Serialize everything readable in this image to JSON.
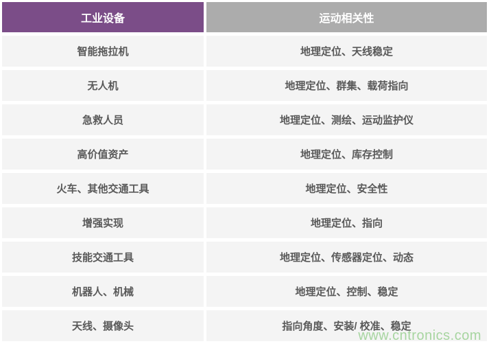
{
  "table": {
    "headers": [
      "工业设备",
      "运动相关性"
    ],
    "rows": [
      {
        "device": "智能拖拉机",
        "motion": "地理定位、天线稳定"
      },
      {
        "device": "无人机",
        "motion": "地理定位、群集、载荷指向"
      },
      {
        "device": "急救人员",
        "motion": "地理定位、测绘、运动监护仪"
      },
      {
        "device": "高价值资产",
        "motion": "地理定位、库存控制"
      },
      {
        "device": "火车、其他交通工具",
        "motion": "地理定位、安全性"
      },
      {
        "device": "增强实现",
        "motion": "地理定位、指向"
      },
      {
        "device": "技能交通工具",
        "motion": "地理定位、传感器定位、动态"
      },
      {
        "device": "机器人、机械",
        "motion": "地理定位、控制、稳定"
      },
      {
        "device": "天线、摄像头",
        "motion": "指向角度、安装/ 校准、稳定"
      }
    ]
  },
  "watermark": {
    "text": "www.cntronics.com",
    "color": "#A7D5A0"
  },
  "colors": {
    "header_equipment_bg": "#7B4D88",
    "header_motion_bg": "#ACACAC",
    "header_text": "#FFFFFF",
    "row_bg": "#F4F4F4",
    "body_text": "#595959",
    "page_bg": "#FFFFFF"
  }
}
